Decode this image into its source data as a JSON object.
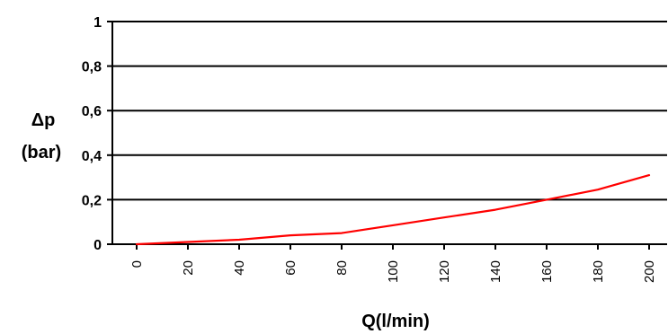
{
  "chart_data": {
    "type": "line",
    "title": "",
    "xlabel": "Q(l/min)",
    "ylabel": [
      "Δp",
      "(bar)"
    ],
    "x": [
      0,
      20,
      40,
      60,
      80,
      100,
      120,
      140,
      160,
      180,
      200
    ],
    "x_tick_labels": [
      "0",
      "20",
      "40",
      "60",
      "80",
      "100",
      "120",
      "140",
      "160",
      "180",
      "200"
    ],
    "y_ticks": [
      0,
      0.2,
      0.4,
      0.6,
      0.8,
      1
    ],
    "y_tick_labels": [
      "0",
      "0,2",
      "0,4",
      "0,6",
      "0,8",
      "1"
    ],
    "ylim": [
      0,
      1
    ],
    "grid": "horizontal",
    "legend": "none",
    "series": [
      {
        "color": "#ff0000",
        "values": [
          0,
          0.01,
          0.02,
          0.04,
          0.05,
          0.085,
          0.12,
          0.155,
          0.2,
          0.245,
          0.31
        ]
      }
    ],
    "colors": {
      "line": "#ff0000",
      "grid": "#000000",
      "axis": "#000000"
    }
  }
}
